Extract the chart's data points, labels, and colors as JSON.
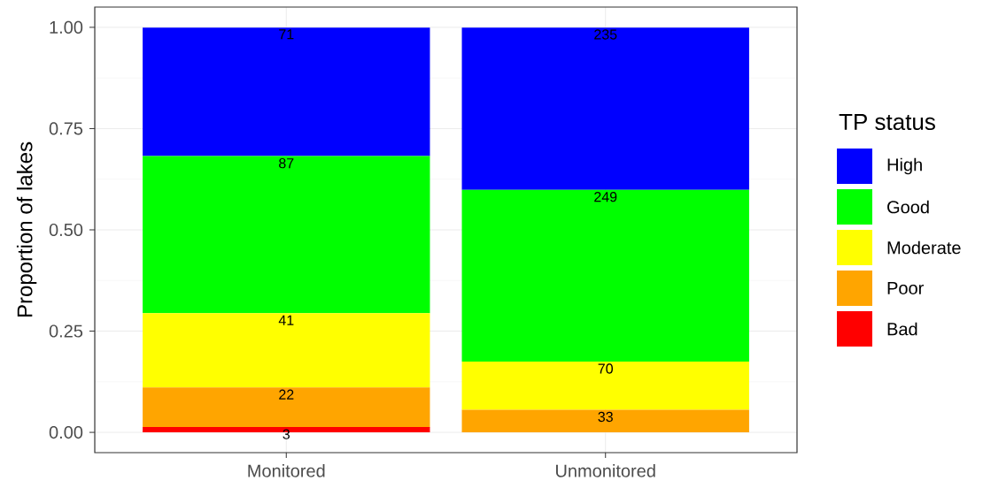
{
  "chart_data": {
    "type": "bar",
    "stacked": true,
    "ylabel": "Proportion of lakes",
    "legend_title": "TP status",
    "legend": "right",
    "grid": true,
    "categories": [
      "Monitored",
      "Unmonitored"
    ],
    "ylim": [
      -0.05,
      1.05
    ],
    "yticks": [
      {
        "value": 0,
        "label": "0.00"
      },
      {
        "value": 0.25,
        "label": "0.25"
      },
      {
        "value": 0.5,
        "label": "0.50"
      },
      {
        "value": 0.75,
        "label": "0.75"
      },
      {
        "value": 1,
        "label": "1.00"
      }
    ],
    "series": [
      {
        "name": "Bad",
        "color": "#ff0000",
        "values": [
          0.013,
          0
        ]
      },
      {
        "name": "Poor",
        "color": "#ffa500",
        "values": [
          0.098,
          0.056
        ]
      },
      {
        "name": "Moderate",
        "color": "#ffff00",
        "values": [
          0.183,
          0.119
        ]
      },
      {
        "name": "Good",
        "color": "#00ff00",
        "values": [
          0.388,
          0.424
        ]
      },
      {
        "name": "High",
        "color": "#0000ff",
        "values": [
          0.317,
          0.4
        ]
      }
    ],
    "annotations": [
      {
        "text": "3",
        "x": "Monitored",
        "y": 0.013
      },
      {
        "text": "22",
        "x": "Monitored",
        "y": 0.111
      },
      {
        "text": "41",
        "x": "Monitored",
        "y": 0.294
      },
      {
        "text": "87",
        "x": "Monitored",
        "y": 0.682
      },
      {
        "text": "71",
        "x": "Monitored",
        "y": 1.0
      },
      {
        "text": "33",
        "x": "Unmonitored",
        "y": 0.056
      },
      {
        "text": "70",
        "x": "Unmonitored",
        "y": 0.175
      },
      {
        "text": "249",
        "x": "Unmonitored",
        "y": 0.599
      },
      {
        "text": "235",
        "x": "Unmonitored",
        "y": 1.0
      }
    ]
  }
}
